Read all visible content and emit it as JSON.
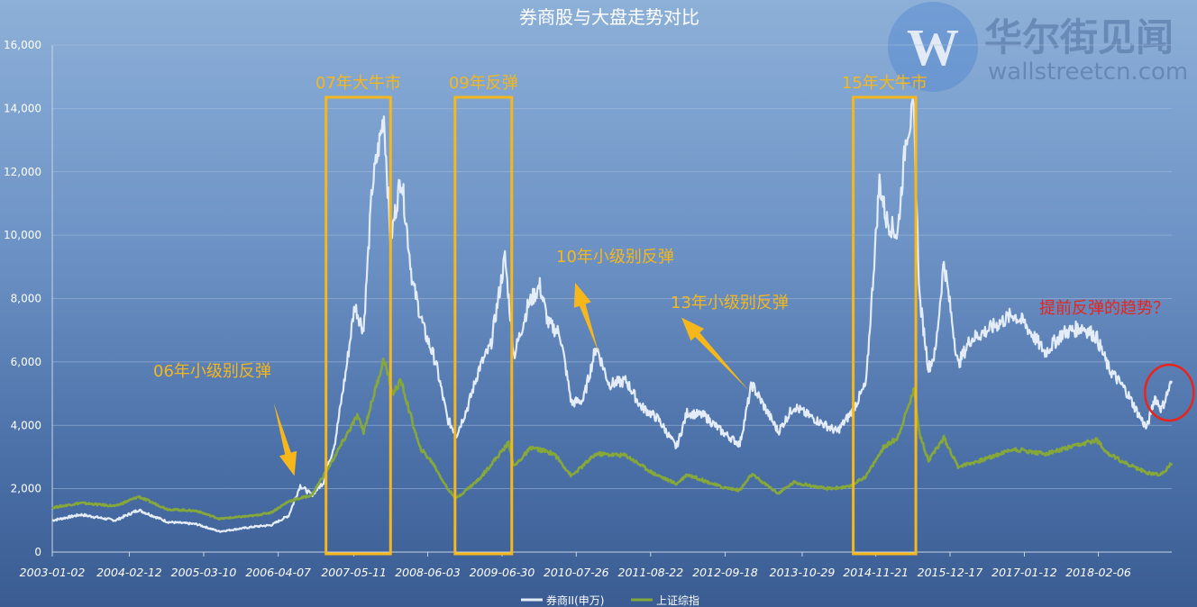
{
  "watermark": {
    "brand_cn": "华尔街见闻",
    "brand_en": "wallstreetcn.com",
    "logo_letter": "W"
  },
  "chart_data": {
    "type": "line",
    "title": "券商股与大盘走势对比",
    "ylim": [
      0,
      16000
    ],
    "y_ticks": [
      "0",
      "2,000",
      "4,000",
      "6,000",
      "8,000",
      "10,000",
      "12,000",
      "14,000",
      "16,000"
    ],
    "x_range": [
      "2003-01-02",
      "2019-02-28"
    ],
    "x_ticks": [
      "2003-01-02",
      "2004-02-12",
      "2005-03-10",
      "2006-04-07",
      "2007-05-11",
      "2008-06-03",
      "2009-06-30",
      "2010-07-26",
      "2011-08-22",
      "2012-09-18",
      "2013-10-29",
      "2014-11-21",
      "2015-12-17",
      "2017-01-12",
      "2018-02-06"
    ],
    "legend_position": "bottom",
    "colors": {
      "broker": "#e4ecf8",
      "index": "#86a83a",
      "highlight": "#f5b71c",
      "circle": "#e8241c"
    },
    "series": [
      {
        "name": "券商II(申万)",
        "key": "broker",
        "points": [
          [
            "2003-01-02",
            1000
          ],
          [
            "2003-06-01",
            1180
          ],
          [
            "2003-12-01",
            1000
          ],
          [
            "2004-04-01",
            1330
          ],
          [
            "2004-09-01",
            950
          ],
          [
            "2005-02-01",
            880
          ],
          [
            "2005-06-01",
            650
          ],
          [
            "2005-12-01",
            800
          ],
          [
            "2006-03-01",
            850
          ],
          [
            "2006-06-01",
            1150
          ],
          [
            "2006-08-01",
            2100
          ],
          [
            "2006-10-01",
            1800
          ],
          [
            "2006-12-01",
            2200
          ],
          [
            "2007-02-01",
            3500
          ],
          [
            "2007-04-01",
            5800
          ],
          [
            "2007-05-15",
            7800
          ],
          [
            "2007-07-01",
            7000
          ],
          [
            "2007-08-15",
            11500
          ],
          [
            "2007-10-16",
            13800
          ],
          [
            "2007-11-20",
            9800
          ],
          [
            "2008-01-15",
            11900
          ],
          [
            "2008-03-15",
            8500
          ],
          [
            "2008-05-15",
            7000
          ],
          [
            "2008-07-15",
            6000
          ],
          [
            "2008-09-15",
            4200
          ],
          [
            "2008-11-01",
            3700
          ],
          [
            "2009-01-01",
            4600
          ],
          [
            "2009-03-01",
            5800
          ],
          [
            "2009-05-01",
            6500
          ],
          [
            "2009-07-15",
            9300
          ],
          [
            "2009-09-01",
            6200
          ],
          [
            "2009-11-15",
            7800
          ],
          [
            "2010-01-15",
            8400
          ],
          [
            "2010-03-01",
            7200
          ],
          [
            "2010-05-01",
            6900
          ],
          [
            "2010-07-01",
            4700
          ],
          [
            "2010-09-01",
            4800
          ],
          [
            "2010-11-08",
            6500
          ],
          [
            "2011-01-15",
            5300
          ],
          [
            "2011-04-15",
            5400
          ],
          [
            "2011-07-01",
            4600
          ],
          [
            "2011-10-01",
            4200
          ],
          [
            "2012-01-05",
            3300
          ],
          [
            "2012-03-01",
            4400
          ],
          [
            "2012-06-01",
            4300
          ],
          [
            "2012-09-01",
            3800
          ],
          [
            "2012-12-04",
            3400
          ],
          [
            "2013-02-05",
            5300
          ],
          [
            "2013-06-25",
            3800
          ],
          [
            "2013-09-15",
            4600
          ],
          [
            "2014-01-01",
            4200
          ],
          [
            "2014-05-01",
            3800
          ],
          [
            "2014-07-15",
            4400
          ],
          [
            "2014-10-01",
            5300
          ],
          [
            "2014-12-10",
            11700
          ],
          [
            "2015-01-15",
            10500
          ],
          [
            "2015-03-15",
            10000
          ],
          [
            "2015-05-01",
            13200
          ],
          [
            "2015-06-08",
            13900
          ],
          [
            "2015-07-10",
            8000
          ],
          [
            "2015-08-26",
            5800
          ],
          [
            "2015-10-01",
            6300
          ],
          [
            "2015-11-15",
            9200
          ],
          [
            "2016-01-28",
            5900
          ],
          [
            "2016-04-01",
            6700
          ],
          [
            "2016-07-01",
            7000
          ],
          [
            "2016-11-15",
            7500
          ],
          [
            "2017-01-15",
            7200
          ],
          [
            "2017-05-01",
            6300
          ],
          [
            "2017-08-01",
            6900
          ],
          [
            "2017-11-15",
            7100
          ],
          [
            "2018-01-26",
            6800
          ],
          [
            "2018-04-01",
            5800
          ],
          [
            "2018-07-01",
            5100
          ],
          [
            "2018-09-01",
            4400
          ],
          [
            "2018-10-19",
            3900
          ],
          [
            "2018-12-01",
            4900
          ],
          [
            "2019-01-05",
            4500
          ],
          [
            "2019-02-28",
            5400
          ]
        ]
      },
      {
        "name": "上证综指",
        "key": "index",
        "points": [
          [
            "2003-01-02",
            1400
          ],
          [
            "2003-06-01",
            1550
          ],
          [
            "2003-12-01",
            1450
          ],
          [
            "2004-04-01",
            1750
          ],
          [
            "2004-09-01",
            1350
          ],
          [
            "2005-02-01",
            1300
          ],
          [
            "2005-06-01",
            1050
          ],
          [
            "2005-12-01",
            1150
          ],
          [
            "2006-03-01",
            1250
          ],
          [
            "2006-06-01",
            1600
          ],
          [
            "2006-10-01",
            1800
          ],
          [
            "2006-12-31",
            2700
          ],
          [
            "2007-05-29",
            4300
          ],
          [
            "2007-07-01",
            3800
          ],
          [
            "2007-10-16",
            6100
          ],
          [
            "2007-12-01",
            5000
          ],
          [
            "2008-01-14",
            5400
          ],
          [
            "2008-04-21",
            3300
          ],
          [
            "2008-07-01",
            2800
          ],
          [
            "2008-09-15",
            2000
          ],
          [
            "2008-11-01",
            1700
          ],
          [
            "2009-03-01",
            2300
          ],
          [
            "2009-08-04",
            3450
          ],
          [
            "2009-09-01",
            2700
          ],
          [
            "2009-12-01",
            3300
          ],
          [
            "2010-04-01",
            3100
          ],
          [
            "2010-07-01",
            2400
          ],
          [
            "2010-11-08",
            3100
          ],
          [
            "2011-04-15",
            3050
          ],
          [
            "2011-09-01",
            2500
          ],
          [
            "2012-01-05",
            2150
          ],
          [
            "2012-03-01",
            2450
          ],
          [
            "2012-09-01",
            2050
          ],
          [
            "2012-12-04",
            1950
          ],
          [
            "2013-02-05",
            2450
          ],
          [
            "2013-06-25",
            1850
          ],
          [
            "2013-09-15",
            2200
          ],
          [
            "2014-03-01",
            2000
          ],
          [
            "2014-07-01",
            2050
          ],
          [
            "2014-10-01",
            2400
          ],
          [
            "2014-12-31",
            3300
          ],
          [
            "2015-03-15",
            3600
          ],
          [
            "2015-06-12",
            5150
          ],
          [
            "2015-07-10",
            3700
          ],
          [
            "2015-08-26",
            2900
          ],
          [
            "2015-11-15",
            3600
          ],
          [
            "2016-01-28",
            2700
          ],
          [
            "2016-06-01",
            2900
          ],
          [
            "2016-11-15",
            3250
          ],
          [
            "2017-05-01",
            3100
          ],
          [
            "2017-11-15",
            3400
          ],
          [
            "2018-01-26",
            3550
          ],
          [
            "2018-04-01",
            3100
          ],
          [
            "2018-07-01",
            2800
          ],
          [
            "2018-10-19",
            2500
          ],
          [
            "2019-01-04",
            2450
          ],
          [
            "2019-02-28",
            2800
          ]
        ]
      }
    ],
    "annotations": [
      {
        "text": "07年大牛市",
        "kind": "box",
        "from": "2006-12-15",
        "to": "2007-11-20"
      },
      {
        "text": "09年反弹",
        "kind": "box",
        "from": "2008-10-25",
        "to": "2009-08-20"
      },
      {
        "text": "15年大牛市",
        "kind": "box",
        "from": "2014-07-25",
        "to": "2015-06-20"
      },
      {
        "text": "06年小级别反弹",
        "kind": "arrow",
        "from_point": [
          "2006-03-15",
          4700
        ],
        "to_point": [
          "2006-07-01",
          2400
        ]
      },
      {
        "text": "10年小级别反弹",
        "kind": "arrow",
        "from_point": [
          "2010-11-20",
          6300
        ],
        "to_point": [
          "2010-07-20",
          8500
        ]
      },
      {
        "text": "13年小级别反弹",
        "kind": "arrow",
        "from_point": [
          "2013-01-20",
          5100
        ],
        "to_point": [
          "2012-02-01",
          7400
        ]
      },
      {
        "text": "提前反弹的趋势？",
        "kind": "circle",
        "at": [
          "2018-12-20",
          5600
        ]
      }
    ]
  }
}
